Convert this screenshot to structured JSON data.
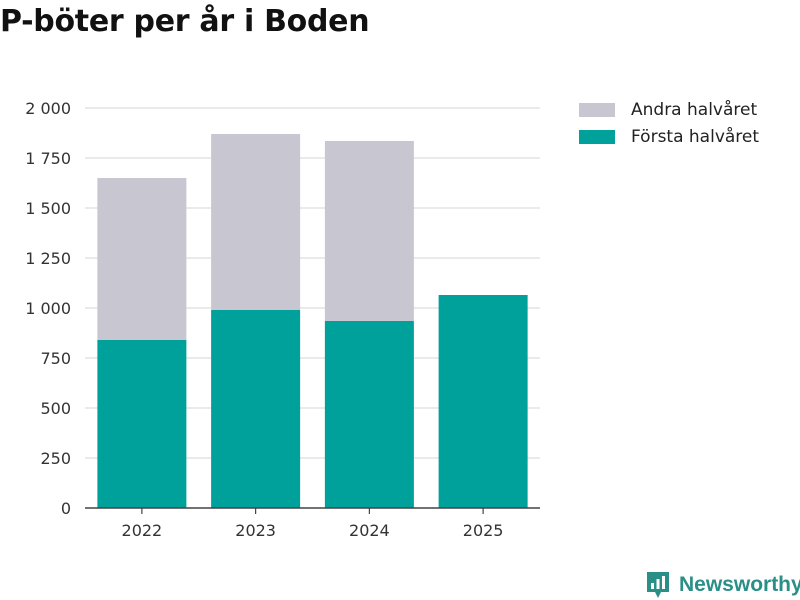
{
  "chart_data": {
    "type": "bar",
    "stacked": true,
    "title": "P-böter per år i Boden",
    "categories": [
      "2022",
      "2023",
      "2024",
      "2025"
    ],
    "series": [
      {
        "name": "Första halvåret",
        "color": "#00a19a",
        "values": [
          840,
          990,
          935,
          1065
        ]
      },
      {
        "name": "Andra halvåret",
        "color": "#c8c7d1",
        "values": [
          810,
          880,
          900,
          0
        ]
      }
    ],
    "ylim": [
      0,
      2000
    ],
    "yticks": [
      0,
      250,
      500,
      750,
      1000,
      1250,
      1500,
      1750,
      2000
    ],
    "ytick_labels": [
      "0",
      "250",
      "500",
      "750",
      "1 000",
      "1 250",
      "1 500",
      "1 750",
      "2 000"
    ],
    "legend_position": "top-right",
    "grid": true
  },
  "legend": [
    {
      "label": "Andra halvåret",
      "color": "#c8c7d1"
    },
    {
      "label": "Första halvåret",
      "color": "#00a19a"
    }
  ],
  "brand": {
    "name": "Newsworthy",
    "color": "#2a8f86"
  }
}
